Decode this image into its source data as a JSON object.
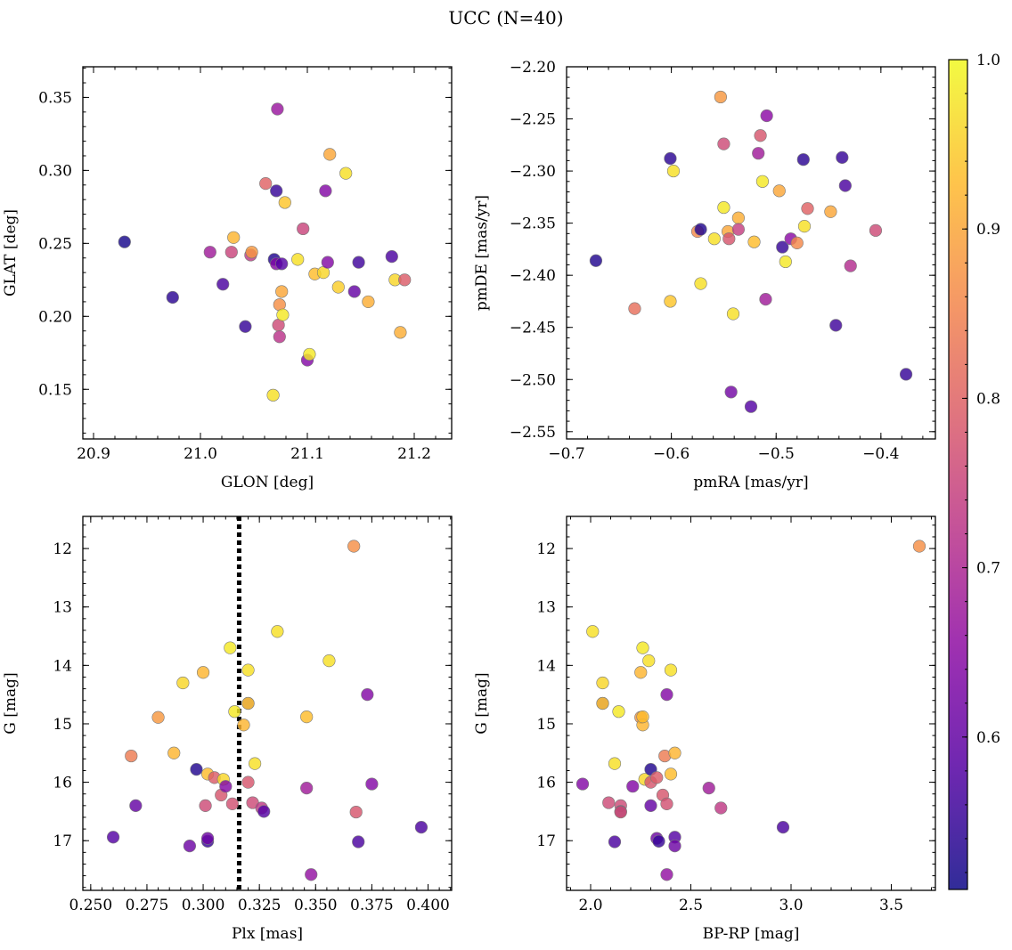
{
  "figure": {
    "title": "UCC (N=40)"
  },
  "colorbar": {
    "colormap": "plasma",
    "vmin": 0.51,
    "vmax": 1.0,
    "ticks": [
      0.6,
      0.7,
      0.8,
      0.9,
      1.0
    ],
    "tick_labels": [
      "0.6",
      "0.7",
      "0.8",
      "0.9",
      "1.0"
    ]
  },
  "chart_data": [
    {
      "type": "scatter",
      "xlabel": "GLON [deg]",
      "ylabel": "GLAT [deg]",
      "xlim": [
        20.89,
        21.235
      ],
      "ylim": [
        0.116,
        0.371
      ],
      "y_inverted": false,
      "xticks": [
        20.9,
        21.0,
        21.1,
        21.2
      ],
      "xtick_labels": [
        "20.9",
        "21.0",
        "21.1",
        "21.2"
      ],
      "yticks": [
        0.15,
        0.2,
        0.25,
        0.3,
        0.35
      ],
      "ytick_labels": [
        "0.15",
        "0.20",
        "0.25",
        "0.30",
        "0.35"
      ],
      "x_minor_step": 0.02,
      "y_minor_step": 0.01,
      "points": [
        {
          "x": 20.929,
          "y": 0.251,
          "c": 0.52
        },
        {
          "x": 20.974,
          "y": 0.213,
          "c": 0.54
        },
        {
          "x": 21.009,
          "y": 0.244,
          "c": 0.68
        },
        {
          "x": 21.021,
          "y": 0.222,
          "c": 0.57
        },
        {
          "x": 21.029,
          "y": 0.244,
          "c": 0.75
        },
        {
          "x": 21.031,
          "y": 0.254,
          "c": 0.92
        },
        {
          "x": 21.042,
          "y": 0.193,
          "c": 0.55
        },
        {
          "x": 21.047,
          "y": 0.242,
          "c": 0.73
        },
        {
          "x": 21.048,
          "y": 0.244,
          "c": 0.88
        },
        {
          "x": 21.061,
          "y": 0.291,
          "c": 0.8
        },
        {
          "x": 21.068,
          "y": 0.146,
          "c": 0.97
        },
        {
          "x": 21.069,
          "y": 0.239,
          "c": 0.53
        },
        {
          "x": 21.071,
          "y": 0.286,
          "c": 0.55
        },
        {
          "x": 21.071,
          "y": 0.236,
          "c": 0.64
        },
        {
          "x": 21.072,
          "y": 0.342,
          "c": 0.67
        },
        {
          "x": 21.073,
          "y": 0.194,
          "c": 0.76
        },
        {
          "x": 21.074,
          "y": 0.186,
          "c": 0.72
        },
        {
          "x": 21.074,
          "y": 0.208,
          "c": 0.87
        },
        {
          "x": 21.076,
          "y": 0.236,
          "c": 0.58
        },
        {
          "x": 21.076,
          "y": 0.217,
          "c": 0.9
        },
        {
          "x": 21.077,
          "y": 0.201,
          "c": 0.98
        },
        {
          "x": 21.079,
          "y": 0.278,
          "c": 0.94
        },
        {
          "x": 21.091,
          "y": 0.239,
          "c": 0.97
        },
        {
          "x": 21.096,
          "y": 0.26,
          "c": 0.75
        },
        {
          "x": 21.1,
          "y": 0.17,
          "c": 0.64
        },
        {
          "x": 21.102,
          "y": 0.174,
          "c": 0.98
        },
        {
          "x": 21.107,
          "y": 0.229,
          "c": 0.93
        },
        {
          "x": 21.115,
          "y": 0.23,
          "c": 0.96
        },
        {
          "x": 21.117,
          "y": 0.286,
          "c": 0.64
        },
        {
          "x": 21.119,
          "y": 0.237,
          "c": 0.64
        },
        {
          "x": 21.121,
          "y": 0.311,
          "c": 0.9
        },
        {
          "x": 21.129,
          "y": 0.22,
          "c": 0.95
        },
        {
          "x": 21.136,
          "y": 0.298,
          "c": 0.97
        },
        {
          "x": 21.144,
          "y": 0.217,
          "c": 0.6
        },
        {
          "x": 21.148,
          "y": 0.237,
          "c": 0.56
        },
        {
          "x": 21.157,
          "y": 0.21,
          "c": 0.91
        },
        {
          "x": 21.179,
          "y": 0.241,
          "c": 0.57
        },
        {
          "x": 21.182,
          "y": 0.225,
          "c": 0.96
        },
        {
          "x": 21.187,
          "y": 0.189,
          "c": 0.91
        },
        {
          "x": 21.191,
          "y": 0.225,
          "c": 0.79
        }
      ]
    },
    {
      "type": "scatter",
      "xlabel": "pmRA [mas/yr]",
      "ylabel": "pmDE [mas/yr]",
      "xlim": [
        -0.7,
        -0.348
      ],
      "ylim": [
        -2.557,
        -2.2
      ],
      "y_inverted": false,
      "xticks": [
        -0.7,
        -0.6,
        -0.5,
        -0.4
      ],
      "xtick_labels": [
        "−0.7",
        "−0.6",
        "−0.5",
        "−0.4"
      ],
      "yticks": [
        -2.55,
        -2.5,
        -2.45,
        -2.4,
        -2.35,
        -2.3,
        -2.25,
        -2.2
      ],
      "ytick_labels": [
        "−2.55",
        "−2.50",
        "−2.45",
        "−2.40",
        "−2.35",
        "−2.30",
        "−2.25",
        "−2.20"
      ],
      "x_minor_step": 0.02,
      "y_minor_step": 0.01,
      "points": [
        {
          "x": -0.672,
          "y": -2.386,
          "c": 0.53
        },
        {
          "x": -0.635,
          "y": -2.432,
          "c": 0.82
        },
        {
          "x": -0.601,
          "y": -2.425,
          "c": 0.94
        },
        {
          "x": -0.601,
          "y": -2.288,
          "c": 0.54
        },
        {
          "x": -0.598,
          "y": -2.3,
          "c": 0.97
        },
        {
          "x": -0.575,
          "y": -2.358,
          "c": 0.86
        },
        {
          "x": -0.572,
          "y": -2.356,
          "c": 0.53
        },
        {
          "x": -0.572,
          "y": -2.408,
          "c": 0.97
        },
        {
          "x": -0.559,
          "y": -2.365,
          "c": 0.97
        },
        {
          "x": -0.553,
          "y": -2.229,
          "c": 0.88
        },
        {
          "x": -0.55,
          "y": -2.274,
          "c": 0.76
        },
        {
          "x": -0.55,
          "y": -2.335,
          "c": 0.98
        },
        {
          "x": -0.546,
          "y": -2.358,
          "c": 0.9
        },
        {
          "x": -0.545,
          "y": -2.365,
          "c": 0.78
        },
        {
          "x": -0.543,
          "y": -2.512,
          "c": 0.62
        },
        {
          "x": -0.541,
          "y": -2.437,
          "c": 0.97
        },
        {
          "x": -0.536,
          "y": -2.345,
          "c": 0.91
        },
        {
          "x": -0.536,
          "y": -2.356,
          "c": 0.74
        },
        {
          "x": -0.524,
          "y": -2.526,
          "c": 0.58
        },
        {
          "x": -0.521,
          "y": -2.368,
          "c": 0.93
        },
        {
          "x": -0.517,
          "y": -2.283,
          "c": 0.68
        },
        {
          "x": -0.515,
          "y": -2.266,
          "c": 0.78
        },
        {
          "x": -0.513,
          "y": -2.31,
          "c": 0.98
        },
        {
          "x": -0.51,
          "y": -2.423,
          "c": 0.68
        },
        {
          "x": -0.509,
          "y": -2.247,
          "c": 0.65
        },
        {
          "x": -0.497,
          "y": -2.319,
          "c": 0.9
        },
        {
          "x": -0.494,
          "y": -2.373,
          "c": 0.55
        },
        {
          "x": -0.491,
          "y": -2.387,
          "c": 0.98
        },
        {
          "x": -0.486,
          "y": -2.365,
          "c": 0.65
        },
        {
          "x": -0.48,
          "y": -2.369,
          "c": 0.86
        },
        {
          "x": -0.474,
          "y": -2.289,
          "c": 0.54
        },
        {
          "x": -0.473,
          "y": -2.353,
          "c": 0.97
        },
        {
          "x": -0.47,
          "y": -2.336,
          "c": 0.8
        },
        {
          "x": -0.448,
          "y": -2.339,
          "c": 0.9
        },
        {
          "x": -0.443,
          "y": -2.448,
          "c": 0.56
        },
        {
          "x": -0.437,
          "y": -2.287,
          "c": 0.55
        },
        {
          "x": -0.434,
          "y": -2.314,
          "c": 0.57
        },
        {
          "x": -0.429,
          "y": -2.391,
          "c": 0.71
        },
        {
          "x": -0.405,
          "y": -2.357,
          "c": 0.76
        },
        {
          "x": -0.376,
          "y": -2.495,
          "c": 0.55
        }
      ]
    },
    {
      "type": "scatter",
      "xlabel": "Plx [mas]",
      "ylabel": "G [mag]",
      "xlim": [
        0.2465,
        0.4105
      ],
      "ylim": [
        17.85,
        11.45
      ],
      "y_inverted": true,
      "xticks": [
        0.25,
        0.275,
        0.3,
        0.325,
        0.35,
        0.375,
        0.4
      ],
      "xtick_labels": [
        "0.250",
        "0.275",
        "0.300",
        "0.325",
        "0.350",
        "0.375",
        "0.400"
      ],
      "yticks": [
        12,
        13,
        14,
        15,
        16,
        17
      ],
      "ytick_labels": [
        "12",
        "13",
        "14",
        "15",
        "16",
        "17"
      ],
      "x_minor_step": 0.005,
      "y_minor_step": 0.2,
      "reference_line": {
        "x": 0.316,
        "style": "dotted"
      },
      "points": [
        {
          "x": 0.26,
          "y": 16.94,
          "c": 0.58
        },
        {
          "x": 0.268,
          "y": 15.55,
          "c": 0.84
        },
        {
          "x": 0.27,
          "y": 16.4,
          "c": 0.6
        },
        {
          "x": 0.28,
          "y": 14.89,
          "c": 0.88
        },
        {
          "x": 0.287,
          "y": 15.5,
          "c": 0.92
        },
        {
          "x": 0.291,
          "y": 14.3,
          "c": 0.96
        },
        {
          "x": 0.294,
          "y": 17.09,
          "c": 0.61
        },
        {
          "x": 0.297,
          "y": 15.78,
          "c": 0.53
        },
        {
          "x": 0.3,
          "y": 14.12,
          "c": 0.92
        },
        {
          "x": 0.301,
          "y": 16.4,
          "c": 0.76
        },
        {
          "x": 0.302,
          "y": 15.86,
          "c": 0.93
        },
        {
          "x": 0.302,
          "y": 17.01,
          "c": 0.55
        },
        {
          "x": 0.302,
          "y": 16.96,
          "c": 0.61
        },
        {
          "x": 0.305,
          "y": 15.92,
          "c": 0.79
        },
        {
          "x": 0.308,
          "y": 16.22,
          "c": 0.78
        },
        {
          "x": 0.309,
          "y": 15.95,
          "c": 0.96
        },
        {
          "x": 0.31,
          "y": 16.07,
          "c": 0.64
        },
        {
          "x": 0.312,
          "y": 13.7,
          "c": 0.98
        },
        {
          "x": 0.313,
          "y": 16.37,
          "c": 0.77
        },
        {
          "x": 0.314,
          "y": 14.79,
          "c": 0.98
        },
        {
          "x": 0.318,
          "y": 15.02,
          "c": 0.92
        },
        {
          "x": 0.32,
          "y": 14.08,
          "c": 0.97
        },
        {
          "x": 0.32,
          "y": 14.65,
          "c": 0.66
        },
        {
          "x": 0.32,
          "y": 14.65,
          "c": 0.95
        },
        {
          "x": 0.32,
          "y": 16.0,
          "c": 0.78
        },
        {
          "x": 0.322,
          "y": 16.35,
          "c": 0.76
        },
        {
          "x": 0.323,
          "y": 15.68,
          "c": 0.97
        },
        {
          "x": 0.326,
          "y": 16.44,
          "c": 0.73
        },
        {
          "x": 0.327,
          "y": 16.5,
          "c": 0.58
        },
        {
          "x": 0.333,
          "y": 13.42,
          "c": 0.97
        },
        {
          "x": 0.346,
          "y": 14.88,
          "c": 0.93
        },
        {
          "x": 0.346,
          "y": 16.1,
          "c": 0.68
        },
        {
          "x": 0.348,
          "y": 17.58,
          "c": 0.66
        },
        {
          "x": 0.356,
          "y": 13.92,
          "c": 0.97
        },
        {
          "x": 0.367,
          "y": 11.96,
          "c": 0.87
        },
        {
          "x": 0.368,
          "y": 16.51,
          "c": 0.78
        },
        {
          "x": 0.369,
          "y": 17.02,
          "c": 0.57
        },
        {
          "x": 0.373,
          "y": 14.5,
          "c": 0.64
        },
        {
          "x": 0.375,
          "y": 16.03,
          "c": 0.64
        },
        {
          "x": 0.397,
          "y": 16.77,
          "c": 0.57
        }
      ]
    },
    {
      "type": "scatter",
      "xlabel": "BP-RP [mag]",
      "ylabel": "G [mag]",
      "xlim": [
        1.88,
        3.72
      ],
      "ylim": [
        17.85,
        11.45
      ],
      "y_inverted": true,
      "xticks": [
        2.0,
        2.5,
        3.0,
        3.5
      ],
      "xtick_labels": [
        "2.0",
        "2.5",
        "3.0",
        "3.5"
      ],
      "yticks": [
        12,
        13,
        14,
        15,
        16,
        17
      ],
      "ytick_labels": [
        "12",
        "13",
        "14",
        "15",
        "16",
        "17"
      ],
      "x_minor_step": 0.1,
      "y_minor_step": 0.2,
      "points": [
        {
          "x": 1.96,
          "y": 16.03,
          "c": 0.64
        },
        {
          "x": 2.01,
          "y": 13.42,
          "c": 0.97
        },
        {
          "x": 2.06,
          "y": 14.3,
          "c": 0.96
        },
        {
          "x": 2.06,
          "y": 14.65,
          "c": 0.66
        },
        {
          "x": 2.06,
          "y": 14.65,
          "c": 0.95
        },
        {
          "x": 2.09,
          "y": 16.35,
          "c": 0.76
        },
        {
          "x": 2.12,
          "y": 17.02,
          "c": 0.57
        },
        {
          "x": 2.12,
          "y": 15.68,
          "c": 0.97
        },
        {
          "x": 2.14,
          "y": 14.79,
          "c": 0.98
        },
        {
          "x": 2.15,
          "y": 16.4,
          "c": 0.76
        },
        {
          "x": 2.15,
          "y": 16.5,
          "c": 0.58
        },
        {
          "x": 2.15,
          "y": 16.51,
          "c": 0.78
        },
        {
          "x": 2.21,
          "y": 16.07,
          "c": 0.64
        },
        {
          "x": 2.25,
          "y": 14.89,
          "c": 0.88
        },
        {
          "x": 2.25,
          "y": 14.12,
          "c": 0.92
        },
        {
          "x": 2.26,
          "y": 13.7,
          "c": 0.98
        },
        {
          "x": 2.26,
          "y": 15.02,
          "c": 0.92
        },
        {
          "x": 2.26,
          "y": 14.88,
          "c": 0.93
        },
        {
          "x": 2.27,
          "y": 15.95,
          "c": 0.96
        },
        {
          "x": 2.29,
          "y": 13.92,
          "c": 0.97
        },
        {
          "x": 2.3,
          "y": 16.4,
          "c": 0.6
        },
        {
          "x": 2.3,
          "y": 15.78,
          "c": 0.53
        },
        {
          "x": 2.3,
          "y": 16.0,
          "c": 0.78
        },
        {
          "x": 2.33,
          "y": 15.92,
          "c": 0.79
        },
        {
          "x": 2.33,
          "y": 16.96,
          "c": 0.61
        },
        {
          "x": 2.34,
          "y": 17.01,
          "c": 0.55
        },
        {
          "x": 2.36,
          "y": 16.22,
          "c": 0.78
        },
        {
          "x": 2.37,
          "y": 15.55,
          "c": 0.84
        },
        {
          "x": 2.38,
          "y": 14.5,
          "c": 0.64
        },
        {
          "x": 2.38,
          "y": 16.37,
          "c": 0.77
        },
        {
          "x": 2.38,
          "y": 17.58,
          "c": 0.66
        },
        {
          "x": 2.4,
          "y": 14.08,
          "c": 0.97
        },
        {
          "x": 2.4,
          "y": 15.86,
          "c": 0.93
        },
        {
          "x": 2.42,
          "y": 15.5,
          "c": 0.92
        },
        {
          "x": 2.42,
          "y": 16.94,
          "c": 0.58
        },
        {
          "x": 2.42,
          "y": 17.09,
          "c": 0.61
        },
        {
          "x": 2.59,
          "y": 16.1,
          "c": 0.68
        },
        {
          "x": 2.65,
          "y": 16.44,
          "c": 0.73
        },
        {
          "x": 2.96,
          "y": 16.77,
          "c": 0.57
        },
        {
          "x": 3.64,
          "y": 11.96,
          "c": 0.87
        }
      ]
    }
  ]
}
